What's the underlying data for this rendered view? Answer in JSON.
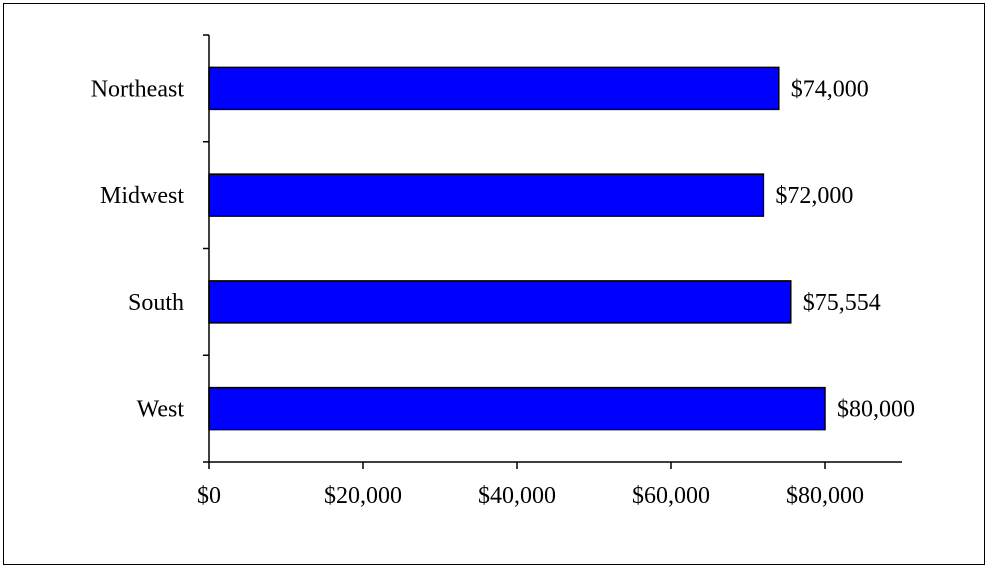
{
  "chart_data": {
    "type": "bar",
    "orientation": "horizontal",
    "title": "",
    "xlabel": "",
    "ylabel": "",
    "categories": [
      "Northeast",
      "Midwest",
      "South",
      "West"
    ],
    "values": [
      74000,
      72000,
      75554,
      80000
    ],
    "data_labels": [
      "$74,000",
      "$72,000",
      "$75,554",
      "$80,000"
    ],
    "xlim": [
      0,
      90000
    ],
    "x_ticks": [
      0,
      20000,
      40000,
      60000,
      80000
    ],
    "x_tick_labels": [
      "$0",
      "$20,000",
      "$40,000",
      "$60,000",
      "$80,000"
    ],
    "grid": false,
    "legend": "none",
    "bar_color": "#0000FF",
    "bar_edge_color": "#000000"
  }
}
